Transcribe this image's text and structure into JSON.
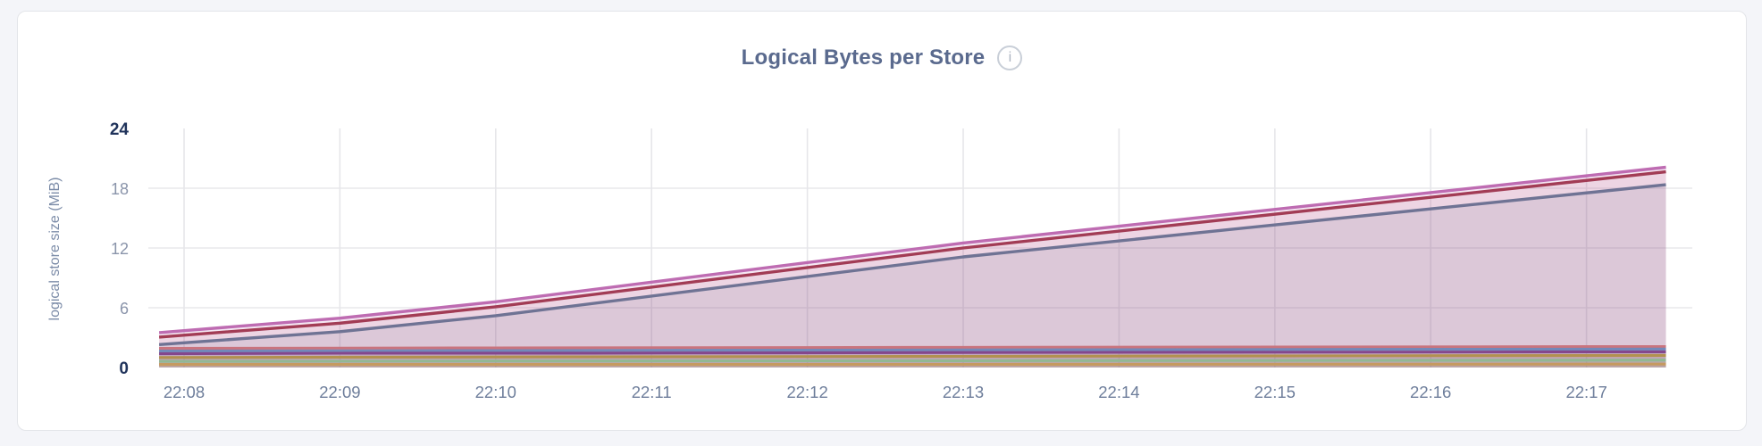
{
  "page": {
    "background_color": "#F4F5F9",
    "card_background": "#FFFFFF",
    "card_border_color": "#E3E5E9"
  },
  "header": {
    "title": "Logical Bytes per Store",
    "info_icon_glyph": "i"
  },
  "chart_data": {
    "type": "area",
    "title": "Logical Bytes per Store",
    "xlabel": "",
    "ylabel": "logical store size (MiB)",
    "x_tick_labels": [
      "22:08",
      "22:09",
      "22:10",
      "22:11",
      "22:12",
      "22:13",
      "22:14",
      "22:15",
      "22:16",
      "22:17"
    ],
    "y_ticks": [
      0,
      6,
      12,
      18,
      24
    ],
    "ylim": [
      0,
      24
    ],
    "x_domain_minutes_from_first_tick": [
      -0.16,
      9.51
    ],
    "grid": true,
    "legend": "none",
    "gridline_color_h": "#E9E9EC",
    "gridline_color_v": "#E6E6EA",
    "series": [
      {
        "name": "line-pink",
        "color": "#BE6CB2",
        "fill_opacity": 0.16,
        "stroke_width": 3.4,
        "points": [
          [
            -0.16,
            3.5
          ],
          [
            1,
            4.95
          ],
          [
            2,
            6.6
          ],
          [
            5,
            12.5
          ],
          [
            9.51,
            20.1
          ]
        ]
      },
      {
        "name": "line-maroon",
        "color": "#A23C55",
        "fill_opacity": 0.1,
        "stroke_width": 3.4,
        "points": [
          [
            -0.16,
            3.05
          ],
          [
            1,
            4.45
          ],
          [
            2,
            6.1
          ],
          [
            5,
            12.0
          ],
          [
            9.51,
            19.65
          ]
        ]
      },
      {
        "name": "line-slate",
        "color": "#6F7394",
        "fill_opacity": 0.13,
        "stroke_width": 3.4,
        "points": [
          [
            -0.16,
            2.3
          ],
          [
            1,
            3.6
          ],
          [
            2,
            5.2
          ],
          [
            5,
            11.1
          ],
          [
            9.51,
            18.35
          ]
        ]
      },
      {
        "name": "line-salmon",
        "color": "#C9747E",
        "fill_opacity": 0.12,
        "stroke_width": 3.1,
        "points": [
          [
            -0.16,
            1.92
          ],
          [
            2,
            1.97
          ],
          [
            5,
            2.02
          ],
          [
            9.51,
            2.1
          ]
        ]
      },
      {
        "name": "line-blue",
        "color": "#7289BA",
        "fill_opacity": 0.12,
        "stroke_width": 3.1,
        "points": [
          [
            -0.16,
            1.65
          ],
          [
            2,
            1.7
          ],
          [
            5,
            1.76
          ],
          [
            9.51,
            1.85
          ]
        ]
      },
      {
        "name": "line-violet",
        "color": "#84478D",
        "fill_opacity": 0.12,
        "stroke_width": 3.1,
        "points": [
          [
            -0.16,
            1.38
          ],
          [
            1.2,
            1.44
          ],
          [
            2.6,
            1.44
          ],
          [
            5,
            1.5
          ],
          [
            9.51,
            1.58
          ]
        ]
      },
      {
        "name": "line-gold",
        "color": "#B2914F",
        "fill_opacity": 0.12,
        "stroke_width": 3.1,
        "points": [
          [
            -0.16,
            1.0
          ],
          [
            2,
            1.06
          ],
          [
            5,
            1.12
          ],
          [
            9.51,
            1.22
          ]
        ]
      },
      {
        "name": "line-green",
        "color": "#92B893",
        "fill_opacity": 0.12,
        "stroke_width": 3.1,
        "points": [
          [
            -0.16,
            0.62
          ],
          [
            2,
            0.65
          ],
          [
            5,
            0.68
          ],
          [
            9.51,
            0.74
          ]
        ]
      },
      {
        "name": "line-tan",
        "color": "#C59A60",
        "fill_opacity": 0.12,
        "stroke_width": 3.1,
        "points": [
          [
            -0.16,
            0.3
          ],
          [
            5,
            0.31
          ],
          [
            9.51,
            0.34
          ]
        ]
      }
    ]
  }
}
